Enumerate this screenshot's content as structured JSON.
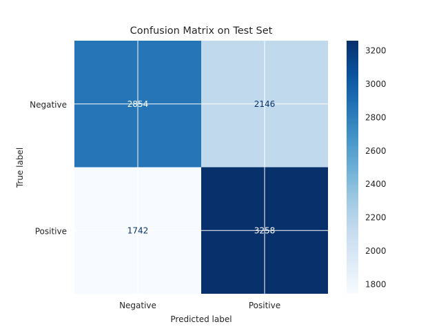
{
  "chart_data": {
    "type": "heatmap",
    "title": "Confusion Matrix on Test Set",
    "xlabel": "Predicted label",
    "ylabel": "True label",
    "x_categories": [
      "Negative",
      "Positive"
    ],
    "y_categories": [
      "Negative",
      "Positive"
    ],
    "values": [
      [
        2854,
        2146
      ],
      [
        1742,
        3258
      ]
    ],
    "colorbar": {
      "min": 1742,
      "max": 3258,
      "ticks": [
        1800,
        2000,
        2200,
        2400,
        2600,
        2800,
        3000,
        3200
      ],
      "colormap": "Blues"
    },
    "grid": true,
    "colors": {
      "low": "#f7fbff",
      "high": "#08306b",
      "text_dark": "#08306b",
      "text_light": "#ffffff"
    }
  }
}
